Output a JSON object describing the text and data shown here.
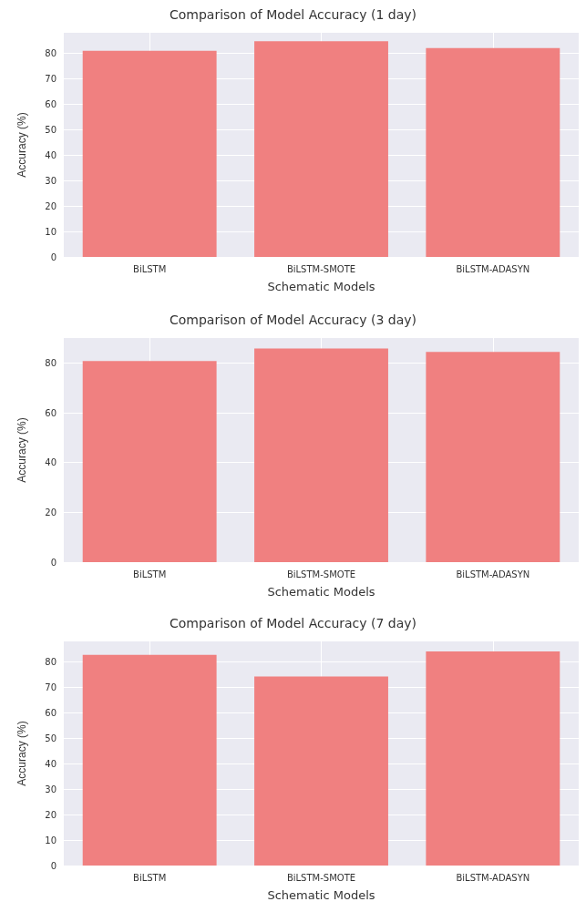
{
  "chart_data": [
    {
      "type": "bar",
      "title": "Comparison of Model Accuracy (1 day)",
      "xlabel": "Schematic Models",
      "ylabel": "Accuracy (%)",
      "categories": [
        "BiLSTM",
        "BiLSTM-SMOTE",
        "BiLSTM-ADASYN"
      ],
      "values": [
        80.9,
        84.7,
        82.0
      ],
      "color": "#f08080",
      "ylim": [
        0,
        88
      ],
      "yticks": [
        0,
        10,
        20,
        30,
        40,
        50,
        60,
        70,
        80
      ],
      "grid": true
    },
    {
      "type": "bar",
      "title": "Comparison of Model Accuracy (3 day)",
      "xlabel": "Schematic Models",
      "ylabel": "Accuracy (%)",
      "categories": [
        "BiLSTM",
        "BiLSTM-SMOTE",
        "BiLSTM-ADASYN"
      ],
      "values": [
        80.8,
        85.8,
        84.4
      ],
      "color": "#f08080",
      "ylim": [
        0,
        90
      ],
      "yticks": [
        0,
        20,
        40,
        60,
        80
      ],
      "grid": true
    },
    {
      "type": "bar",
      "title": "Comparison of Model Accuracy (7 day)",
      "xlabel": "Schematic Models",
      "ylabel": "Accuracy (%)",
      "categories": [
        "BiLSTM",
        "BiLSTM-SMOTE",
        "BiLSTM-ADASYN"
      ],
      "values": [
        82.7,
        74.2,
        84.1
      ],
      "color": "#f08080",
      "ylim": [
        0,
        88
      ],
      "yticks": [
        0,
        10,
        20,
        30,
        40,
        50,
        60,
        70,
        80
      ],
      "grid": true
    }
  ]
}
